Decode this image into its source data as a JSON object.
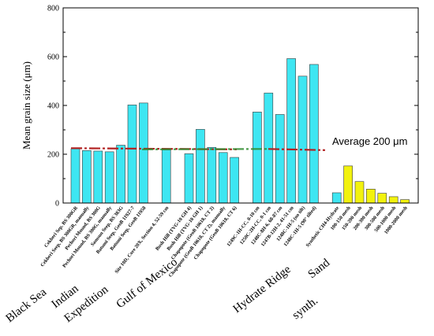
{
  "chart_data": {
    "type": "bar",
    "ylabel": "Mean grain size (μm)",
    "ylim": [
      0,
      800
    ],
    "yticks": [
      0,
      200,
      400,
      600,
      800
    ],
    "categories": [
      "Cekberi Sep. BS 300GR",
      "Cekberi Seep, BS 300GR, manually",
      "Pechori Mound, BS 300G",
      "Pechori Mound, BS 300G, manually",
      "Samsun Seep, BS 383G",
      "Batumi Seep, GeoB 11927-7",
      "Batumi Seep, GeoB 11958",
      "Site 10D, Core 20X, Section 4, 52-59 cm",
      "Bush Hill (TVG-10 GH 4)",
      "Bush Hill (TVG-10 GH 1)",
      "Chapopote (GeoB 10618, CT 2)",
      "Chapopote (GeoB 10618, CT 2), manually",
      "Chapopote (GeoB 10618, CT 6)",
      "1249C-1H-CC, 0-10 cm",
      "1250C-2H-CC, 0-1 cm",
      "1248C-8H-6, 68-87 cm",
      "1247B-12H-2, 41-51 cm",
      "1248C-1H-5 (no tilt)",
      "1248C-1H-5 (90° tilted)",
      "Synthetic CH4-Hydrate",
      "100-150 mesh",
      "150-200 mesh",
      "200-300 mesh",
      "300-500 mesh",
      "500-1000 mesh",
      "1000-2000 mesh"
    ],
    "values": [
      222,
      215,
      213,
      210,
      237,
      402,
      410,
      218,
      202,
      302,
      228,
      207,
      187,
      373,
      451,
      363,
      592,
      520,
      568,
      42,
      152,
      88,
      57,
      40,
      26,
      14
    ],
    "slots": [
      0,
      1,
      2,
      3,
      4,
      5,
      6,
      8,
      10,
      11,
      12,
      13,
      14,
      16,
      17,
      18,
      19,
      20,
      21,
      23,
      24,
      25,
      26,
      27,
      28,
      29
    ],
    "bar_colors": {
      "hydrate": "#3ee6f2",
      "sand": "#f2f20e"
    },
    "sand_start_index": 20,
    "groups": [
      "Black Sea",
      "Indian",
      "Expedition",
      "Gulf of Mexico",
      "Hydrate Ridge",
      "synth.",
      "Sand"
    ],
    "reference_line": {
      "value": 220,
      "label": "Average 200 μm",
      "colors": [
        "#b22222",
        "#2e8b2e"
      ]
    },
    "grid": false,
    "legend": "none"
  }
}
